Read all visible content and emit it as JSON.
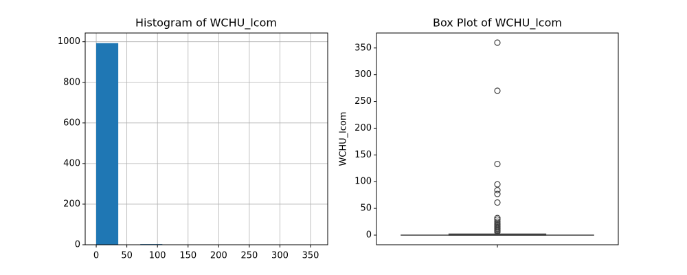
{
  "chart_data": [
    {
      "type": "histogram",
      "title": "Histogram of WCHU_lcom",
      "bins": [
        0,
        36,
        72,
        108,
        144,
        180,
        216,
        252,
        288,
        324,
        360
      ],
      "counts": [
        993,
        1,
        3,
        1,
        0,
        0,
        0,
        1,
        0,
        1
      ],
      "color": "#1f77b4",
      "xlim": [
        -18,
        378
      ],
      "ylim": [
        0,
        1043
      ],
      "xticks": [
        0,
        50,
        100,
        150,
        200,
        250,
        300,
        350
      ],
      "yticks": [
        0,
        200,
        400,
        600,
        800,
        1000
      ],
      "grid": true
    },
    {
      "type": "box",
      "title": "Box Plot of WCHU_lcom",
      "ylabel": "WCHU_lcom",
      "whisker_low": 0,
      "q1": 0,
      "median": 1,
      "q3": 2,
      "whisker_high": 5,
      "outliers": [
        360,
        270,
        133,
        95,
        84,
        77,
        61,
        32,
        29,
        25,
        22,
        20,
        18,
        16,
        14,
        12,
        10,
        8,
        6
      ],
      "color": "#1f77b4",
      "ylim": [
        -18,
        378
      ],
      "yticks": [
        0,
        50,
        100,
        150,
        200,
        250,
        300,
        350
      ]
    }
  ]
}
